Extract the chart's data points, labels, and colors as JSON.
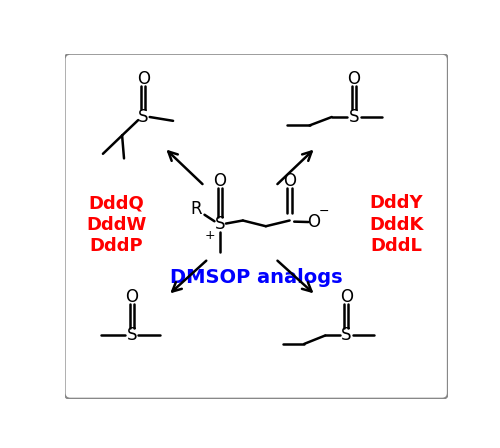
{
  "title": "DMSOP analogs",
  "title_color": "blue",
  "enzyme_left": [
    "DddQ",
    "DddW",
    "DddP"
  ],
  "enzyme_right": [
    "DddY",
    "DddK",
    "DddL"
  ],
  "enzyme_color": "red",
  "background_color": "white",
  "border_color": "#888888",
  "figsize": [
    5.0,
    4.48
  ],
  "dpi": 100,
  "lw": 1.8,
  "fs_chem": 11,
  "fs_enzyme": 13,
  "fs_title": 14
}
